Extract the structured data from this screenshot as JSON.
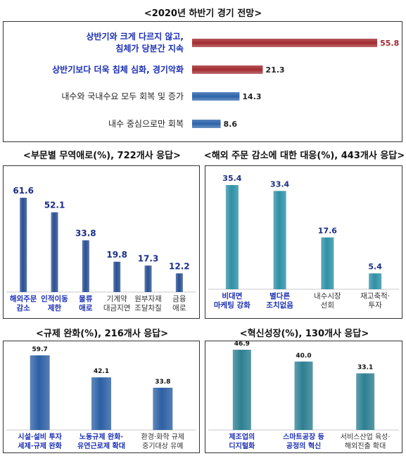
{
  "charts": [
    {
      "title": "<2020년 하반기 경기 전망>",
      "chart_data": {
        "type": "bar",
        "orientation": "horizontal",
        "categories": [
          "상반기와 크게 다르지 않고,\n침체가 당분간 지속",
          "상반기보다 더욱 침체 심화, 경기악화",
          "내수와 국내수요 모두 회복 및 증가",
          "내수 중심으로만 회복"
        ],
        "values": [
          55.8,
          21.3,
          14.3,
          8.6
        ],
        "value_labels": [
          "55.8",
          "21.3",
          "14.3",
          "8.6"
        ],
        "category_styles": [
          "blue",
          "blue",
          "black",
          "black"
        ],
        "bar_colors": [
          "#a22b30",
          "#a22b30",
          "#2c63aa",
          "#2c63aa"
        ],
        "value_color": "#111111",
        "value_colors": [
          "#a22b30",
          "#222222",
          "#222222",
          "#222222"
        ],
        "xlim": [
          0,
          60
        ]
      }
    },
    {
      "title": "<부문별 무역애로(%), 722개사 응답>",
      "chart_data": {
        "type": "bar",
        "categories": [
          "해외주문\n감소",
          "인적이동\n제한",
          "물류\n애로",
          "기계약\n대금지연",
          "원부자재\n조달차질",
          "금융\n애로"
        ],
        "values": [
          61.6,
          52.1,
          33.8,
          19.8,
          17.3,
          12.2
        ],
        "value_labels": [
          "61.6",
          "52.1",
          "33.8",
          "19.8",
          "17.3",
          "12.2"
        ],
        "category_styles": [
          "blue",
          "blue",
          "blue",
          "black",
          "black",
          "black"
        ],
        "bar_color": "#2a4f93",
        "value_color": "#1a2e8a",
        "ylim": [
          0,
          70
        ]
      }
    },
    {
      "title": "<해외 주문 감소에 대한 대응(%), 443개사 응답>",
      "chart_data": {
        "type": "bar",
        "categories": [
          "비대면\n마케팅 강화",
          "별다른\n조치없음",
          "내수시장\n선회",
          "재고축적·\n투자"
        ],
        "values": [
          35.4,
          33.4,
          17.6,
          5.4
        ],
        "value_labels": [
          "35.4",
          "33.4",
          "17.6",
          "5.4"
        ],
        "category_styles": [
          "blue",
          "blue",
          "black",
          "black"
        ],
        "bar_color": "#2e90a6",
        "value_color": "#1a2e8a",
        "ylim": [
          0,
          40
        ]
      }
    },
    {
      "title": "<규제 완화(%), 216개사 응답>",
      "chart_data": {
        "type": "bar",
        "categories": [
          "시설·설비 투자\n세제·규제 완화",
          "노동규제 완화·\n유연근로제 확대",
          "환경·화학 규제\n중기대상 유예"
        ],
        "values": [
          59.7,
          42.1,
          33.8
        ],
        "value_labels": [
          "59.7",
          "42.1",
          "33.8"
        ],
        "category_styles": [
          "blue",
          "blue",
          "black"
        ],
        "bar_color": "#2c5fa4",
        "value_color": "#111111",
        "ylim": [
          0,
          70
        ]
      }
    },
    {
      "title": "<혁신성장(%), 130개사 응답>",
      "chart_data": {
        "type": "bar",
        "categories": [
          "제조업의\n디지털화",
          "스마트공장 등\n공정의 혁신",
          "서비스산업 육성·\n해외진출 확대"
        ],
        "values": [
          46.9,
          40.0,
          33.1
        ],
        "value_labels": [
          "46.9",
          "40.0",
          "33.1"
        ],
        "category_styles": [
          "blue",
          "blue",
          "black"
        ],
        "bar_color": "#2c7f91",
        "value_color": "#111111",
        "ylim": [
          0,
          55
        ]
      }
    }
  ]
}
